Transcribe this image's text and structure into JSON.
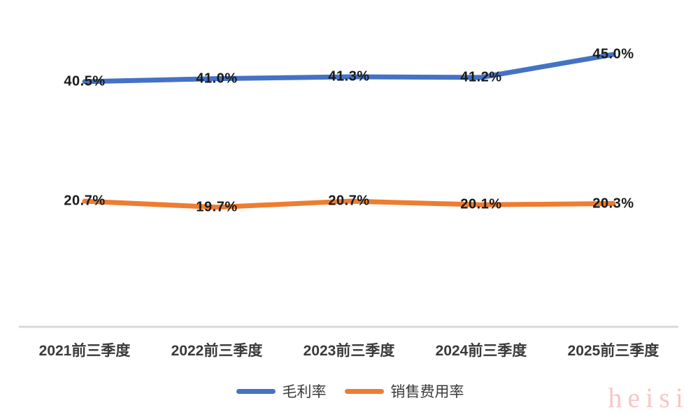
{
  "chart_data": {
    "type": "line",
    "title": "",
    "xlabel": "",
    "ylabel": "",
    "categories": [
      "2021前三季度",
      "2022前三季度",
      "2023前三季度",
      "2024前三季度",
      "2025前三季度"
    ],
    "series": [
      {
        "name": "毛利率",
        "color": "#4472C4",
        "values": [
          40.5,
          41.0,
          41.3,
          41.2,
          45.0
        ],
        "data_labels": [
          "40.5%",
          "41.0%",
          "41.3%",
          "41.2%",
          "45.0%"
        ]
      },
      {
        "name": "销售费用率",
        "color": "#ED7D31",
        "values": [
          20.7,
          19.7,
          20.7,
          20.1,
          20.3
        ],
        "data_labels": [
          "20.7%",
          "19.7%",
          "20.7%",
          "20.1%",
          "20.3%"
        ]
      }
    ],
    "ylim": [
      0,
      50
    ],
    "grid": false,
    "y_axis_visible": false,
    "legend_position": "bottom",
    "axis_line_color": "#d8d8d8",
    "data_label_color": "#1a1a1a",
    "axis_label_color": "#3a3a3a"
  },
  "watermark": {
    "text": "heisi",
    "color": "#f8c6c8"
  }
}
